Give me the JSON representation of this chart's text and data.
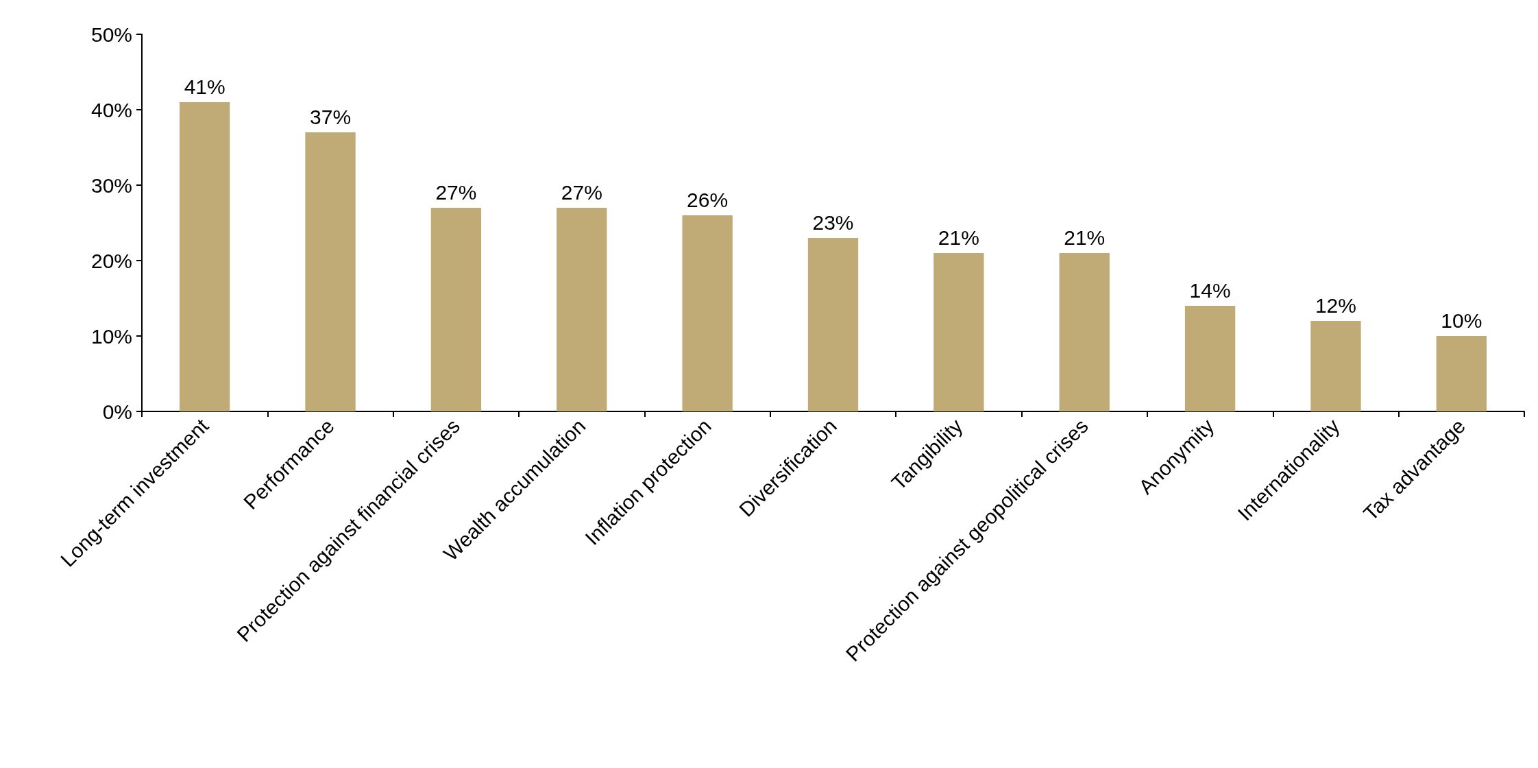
{
  "chart_data": {
    "type": "bar",
    "categories": [
      "Long-term investment",
      "Performance",
      "Protection against financial crises",
      "Wealth accumulation",
      "Inflation protection",
      "Diversification",
      "Tangibility",
      "Protection against geopolitical crises",
      "Anonymity",
      "Internationality",
      "Tax advantage"
    ],
    "values": [
      41,
      37,
      27,
      27,
      26,
      23,
      21,
      21,
      14,
      12,
      10
    ],
    "value_labels": [
      "41%",
      "37%",
      "27%",
      "27%",
      "26%",
      "23%",
      "21%",
      "21%",
      "14%",
      "12%",
      "10%"
    ],
    "color": "#c0aa75",
    "ylim": [
      0,
      50
    ],
    "yticks": [
      {
        "value": 0,
        "label": "0%"
      },
      {
        "value": 10,
        "label": "10%"
      },
      {
        "value": 20,
        "label": "20%"
      },
      {
        "value": 30,
        "label": "30%"
      },
      {
        "value": 40,
        "label": "40%"
      },
      {
        "value": 50,
        "label": "50%"
      }
    ],
    "grid": false
  }
}
